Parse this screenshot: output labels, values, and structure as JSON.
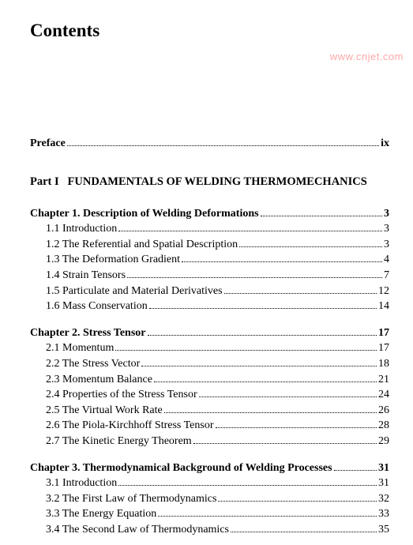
{
  "title": "Contents",
  "watermark": "www.cnjet.com",
  "preface": {
    "label": "Preface",
    "page": "ix"
  },
  "part": {
    "label": "Part I",
    "title": "FUNDAMENTALS OF WELDING THERMOMECHANICS"
  },
  "chapters": [
    {
      "heading": "Chapter 1. Description of Welding Deformations",
      "page": "3",
      "entries": [
        {
          "label": "1.1 Introduction",
          "page": "3"
        },
        {
          "label": "1.2 The Referential and Spatial Description",
          "page": "3"
        },
        {
          "label": "1.3 The Deformation Gradient",
          "page": "4"
        },
        {
          "label": "1.4 Strain Tensors",
          "page": "7"
        },
        {
          "label": "1.5 Particulate and Material Derivatives",
          "page": "12"
        },
        {
          "label": "1.6 Mass Conservation",
          "page": "14"
        }
      ]
    },
    {
      "heading": "Chapter 2. Stress Tensor",
      "page": "17",
      "entries": [
        {
          "label": "2.1 Momentum",
          "page": "17"
        },
        {
          "label": "2.2 The Stress Vector",
          "page": "18"
        },
        {
          "label": "2.3 Momentum Balance",
          "page": "21"
        },
        {
          "label": "2.4 Properties of the Stress Tensor",
          "page": "24"
        },
        {
          "label": "2.5 The Virtual Work Rate",
          "page": "26"
        },
        {
          "label": "2.6 The Piola-Kirchhoff Stress Tensor",
          "page": "28"
        },
        {
          "label": "2.7 The Kinetic Energy Theorem",
          "page": "29"
        }
      ]
    },
    {
      "heading": "Chapter 3. Thermodynamical Background of Welding Processes",
      "page": "31",
      "entries": [
        {
          "label": "3.1 Introduction",
          "page": "31"
        },
        {
          "label": "3.2 The First Law of Thermodynamics",
          "page": "32"
        },
        {
          "label": "3.3 The Energy Equation",
          "page": "33"
        },
        {
          "label": "3.4 The Second Law of Thermodynamics",
          "page": "35"
        }
      ]
    }
  ]
}
